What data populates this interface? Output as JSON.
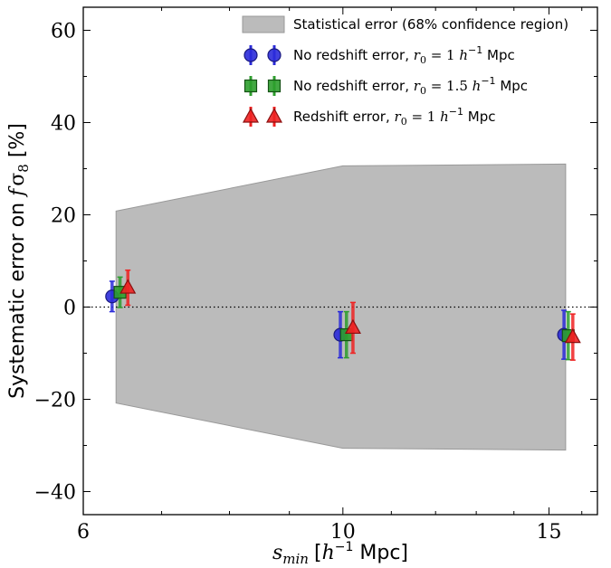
{
  "chart_data": {
    "type": "scatter",
    "title": "",
    "xlabel": "s_min [h^-1 Mpc]",
    "xlabel_parts": {
      "var": "s",
      "sub": "min",
      "unit_open": "[",
      "unit_h": "h",
      "unit_sup": "−1",
      "unit_rest": " Mpc]"
    },
    "ylabel": "Systematic error on fσ8 [%]",
    "ylabel_parts": {
      "prefix": "Systematic error on ",
      "f": "f",
      "sigma": "σ",
      "sub": "8",
      "suffix": " [%]"
    },
    "xscale": "log",
    "xlim": [
      6,
      16.5
    ],
    "ylim": [
      -45,
      65
    ],
    "xticks": [
      6,
      10,
      15
    ],
    "xtick_labels": [
      "6",
      "10",
      "15"
    ],
    "yticks": [
      -40,
      -20,
      0,
      20,
      40,
      60
    ],
    "ytick_labels": [
      "−40",
      "−20",
      "0",
      "20",
      "40",
      "60"
    ],
    "zero_line": {
      "y": 0,
      "style": "dotted"
    },
    "band": {
      "name": "Statistical error (68% confidence region)",
      "x": [
        6.4,
        10.0,
        15.5
      ],
      "upper": [
        20.8,
        30.6,
        31.0
      ],
      "lower": [
        -20.8,
        -30.6,
        -31.0
      ],
      "color": "#bbbbbb"
    },
    "series": [
      {
        "name": "No redshift error, r0 = 1 h^-1 Mpc",
        "legend": {
          "text": "No redshift error, ",
          "var": "r",
          "sub": "0",
          "eq": " = 1 ",
          "h": "h",
          "sup": "−1",
          "rest": " Mpc"
        },
        "marker": "circle",
        "color": "#2b2bd9",
        "edge": "#1a1a80",
        "x": [
          6.35,
          9.95,
          15.45
        ],
        "y": [
          2.3,
          -6.0,
          -6.0
        ],
        "err": [
          3.3,
          5.0,
          5.3
        ]
      },
      {
        "name": "No redshift error, r0 = 1.5 h^-1 Mpc",
        "legend": {
          "text": "No redshift error, ",
          "var": "r",
          "sub": "0",
          "eq": " = 1.5 ",
          "h": "h",
          "sup": "−1",
          "rest": " Mpc"
        },
        "marker": "square",
        "color": "#2e9e2e",
        "edge": "#145214",
        "x": [
          6.45,
          10.07,
          15.58
        ],
        "y": [
          3.2,
          -6.0,
          -6.2
        ],
        "err": [
          3.3,
          5.0,
          5.2
        ]
      },
      {
        "name": "Redshift error, r0 = 1 h^-1 Mpc",
        "legend": {
          "text": "Redshift error, ",
          "var": "r",
          "sub": "0",
          "eq": " = 1 ",
          "h": "h",
          "sup": "−1",
          "rest": " Mpc"
        },
        "marker": "triangle",
        "color": "#ee2222",
        "edge": "#8a0f0f",
        "x": [
          6.55,
          10.2,
          15.72
        ],
        "y": [
          4.2,
          -4.5,
          -6.5
        ],
        "err": [
          3.8,
          5.5,
          5.0
        ]
      }
    ]
  }
}
